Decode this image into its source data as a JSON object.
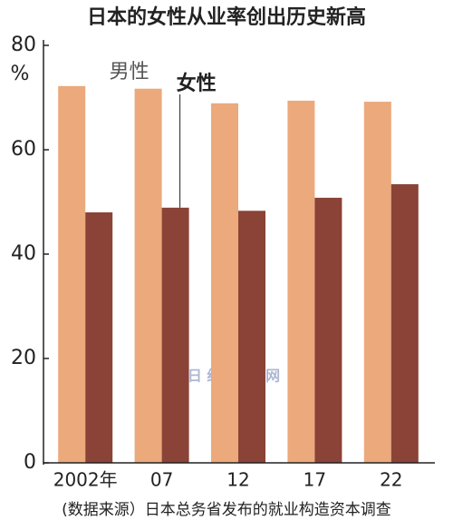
{
  "chart_data": {
    "type": "bar",
    "title": "日本的女性从业率创出历史新高",
    "unit_label": "%",
    "categories": [
      "2002年",
      "07",
      "12",
      "17",
      "22"
    ],
    "series": [
      {
        "name": "男性",
        "color": "#eba97c",
        "values": [
          72.2,
          71.7,
          68.9,
          69.4,
          69.2
        ]
      },
      {
        "name": "女性",
        "color": "#8a4336",
        "values": [
          48.0,
          48.9,
          48.3,
          50.8,
          53.4
        ]
      }
    ],
    "ylim": [
      0,
      80
    ],
    "yticks": [
      0,
      20,
      40,
      60,
      80
    ],
    "watermark": "日 经 中 文 网",
    "source": "(数据来源）日本总务省发布的就业构造资本调查"
  }
}
